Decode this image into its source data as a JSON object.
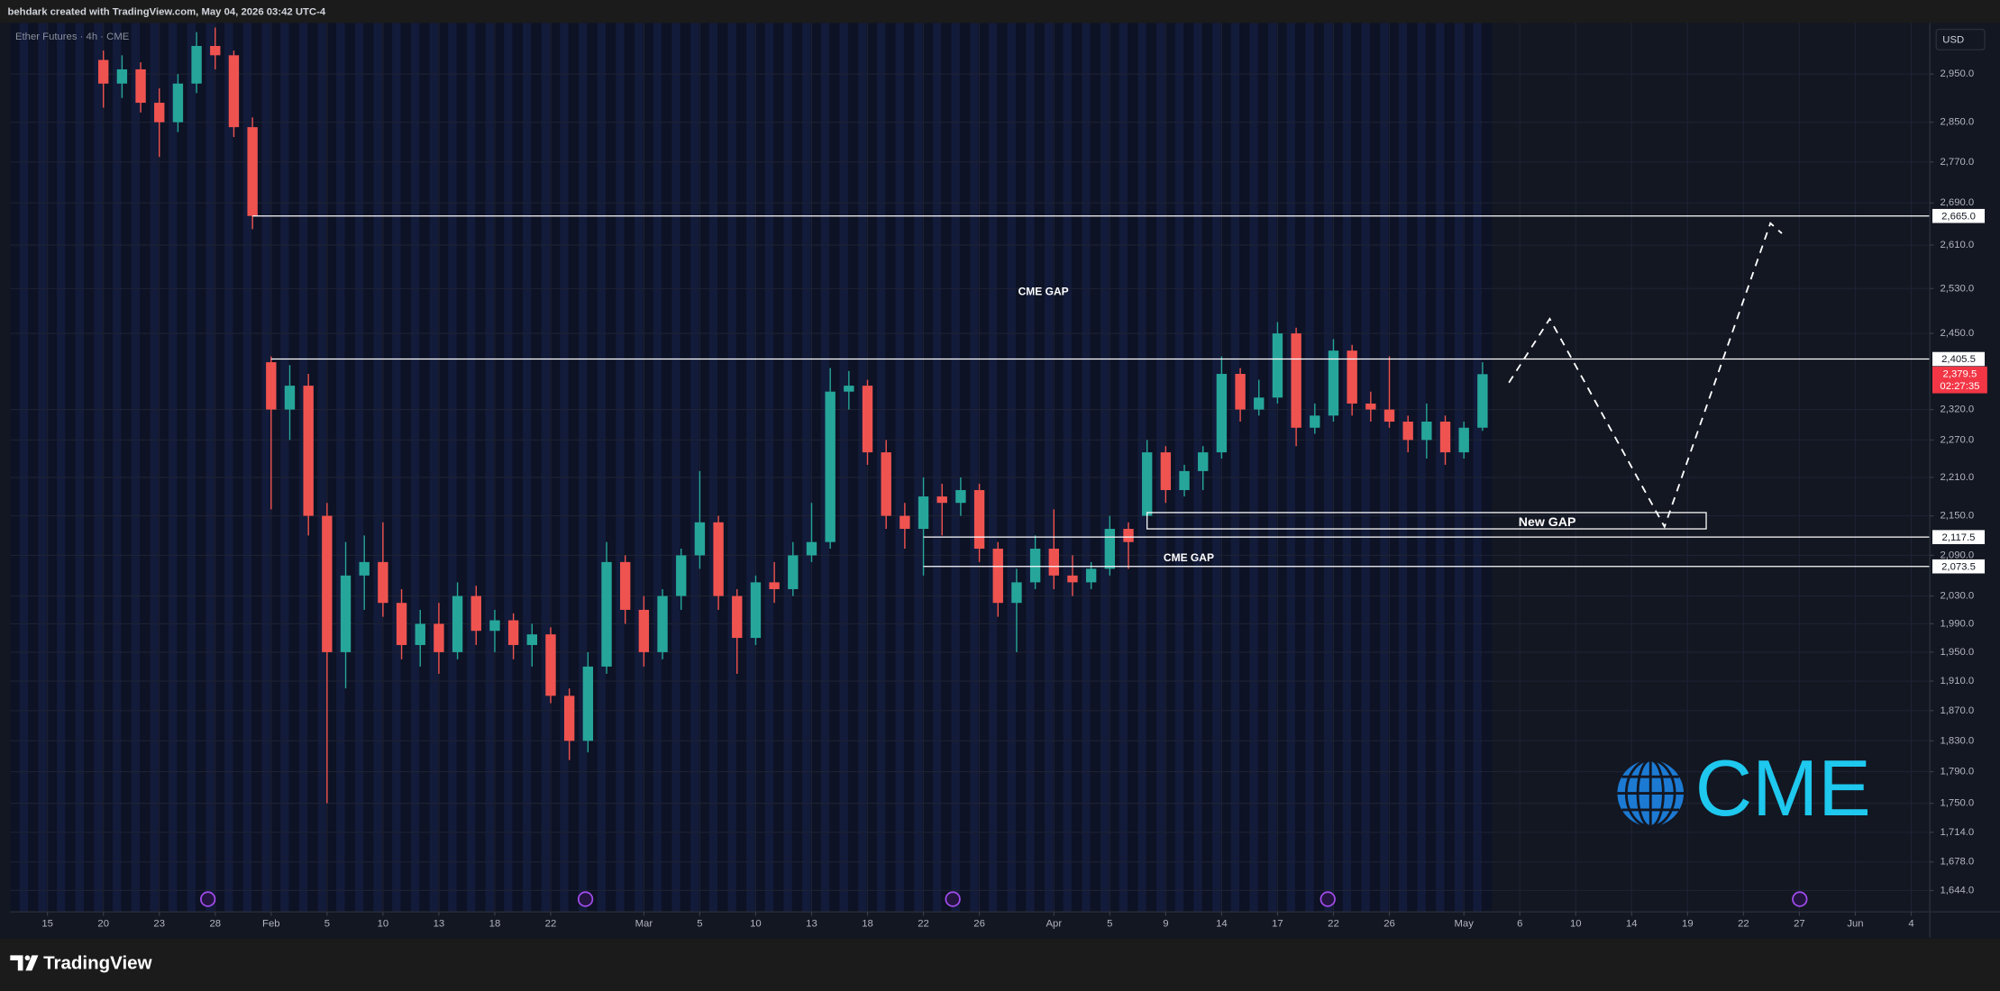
{
  "header": {
    "text": "behdark created with TradingView.com, May 04, 2026 03:42 UTC-4"
  },
  "footer": {
    "brand": "TradingView"
  },
  "chart_data": {
    "type": "candlestick",
    "title": "Ether Futures · 4h · CME",
    "currency": "USD",
    "x": [
      "2026-01-20",
      "2026-01-21",
      "2026-01-22",
      "2026-01-23",
      "2026-01-26",
      "2026-01-27",
      "2026-01-28",
      "2026-01-29",
      "2026-01-30",
      "2026-02-02",
      "2026-02-03",
      "2026-02-04",
      "2026-02-05",
      "2026-02-06",
      "2026-02-09",
      "2026-02-10",
      "2026-02-11",
      "2026-02-12",
      "2026-02-13",
      "2026-02-16",
      "2026-02-17",
      "2026-02-18",
      "2026-02-19",
      "2026-02-20",
      "2026-02-23",
      "2026-02-24",
      "2026-02-25",
      "2026-02-26",
      "2026-02-27",
      "2026-03-02",
      "2026-03-03",
      "2026-03-04",
      "2026-03-05",
      "2026-03-06",
      "2026-03-09",
      "2026-03-10",
      "2026-03-11",
      "2026-03-12",
      "2026-03-13",
      "2026-03-16",
      "2026-03-17",
      "2026-03-18",
      "2026-03-19",
      "2026-03-20",
      "2026-03-23",
      "2026-03-24",
      "2026-03-25",
      "2026-03-26",
      "2026-03-27",
      "2026-03-30",
      "2026-03-31",
      "2026-04-01",
      "2026-04-02",
      "2026-04-03",
      "2026-04-06",
      "2026-04-07",
      "2026-04-08",
      "2026-04-09",
      "2026-04-10",
      "2026-04-13",
      "2026-04-14",
      "2026-04-15",
      "2026-04-16",
      "2026-04-17",
      "2026-04-20",
      "2026-04-21",
      "2026-04-22",
      "2026-04-23",
      "2026-04-24",
      "2026-04-27",
      "2026-04-28",
      "2026-04-29",
      "2026-04-30",
      "2026-05-01",
      "2026-05-04"
    ],
    "open": [
      2980,
      2930,
      2960,
      2890,
      2850,
      2930,
      3010,
      2990,
      2840,
      2400,
      2320,
      2360,
      2150,
      1950,
      2060,
      2080,
      2020,
      1960,
      1990,
      1950,
      2030,
      1980,
      1995,
      1960,
      1975,
      1890,
      1830,
      1930,
      2080,
      2010,
      1950,
      2030,
      2090,
      2140,
      2030,
      1970,
      2050,
      2040,
      2090,
      2110,
      2350,
      2360,
      2250,
      2150,
      2130,
      2180,
      2170,
      2190,
      2100,
      2020,
      2050,
      2100,
      2060,
      2050,
      2070,
      2130,
      2150,
      2250,
      2190,
      2220,
      2250,
      2380,
      2320,
      2340,
      2450,
      2290,
      2310,
      2420,
      2330,
      2320,
      2300,
      2270,
      2300,
      2250,
      2290
    ],
    "high": [
      3000,
      2990,
      2975,
      2920,
      2950,
      3040,
      3050,
      3000,
      2860,
      2410,
      2395,
      2380,
      2170,
      2110,
      2120,
      2140,
      2040,
      2010,
      2020,
      2050,
      2045,
      2010,
      2005,
      1990,
      1985,
      1900,
      1950,
      2110,
      2090,
      2030,
      2040,
      2100,
      2220,
      2150,
      2040,
      2060,
      2080,
      2110,
      2170,
      2390,
      2385,
      2370,
      2270,
      2170,
      2210,
      2200,
      2210,
      2200,
      2110,
      2070,
      2120,
      2160,
      2090,
      2080,
      2150,
      2140,
      2270,
      2260,
      2230,
      2260,
      2410,
      2390,
      2370,
      2470,
      2460,
      2330,
      2440,
      2430,
      2350,
      2410,
      2310,
      2330,
      2310,
      2300,
      2400
    ],
    "low": [
      2880,
      2900,
      2870,
      2780,
      2830,
      2910,
      2960,
      2820,
      2640,
      2160,
      2270,
      2120,
      1750,
      1900,
      2010,
      2000,
      1940,
      1930,
      1920,
      1940,
      1960,
      1950,
      1940,
      1930,
      1880,
      1805,
      1815,
      1920,
      1990,
      1930,
      1940,
      2010,
      2070,
      2010,
      1920,
      1960,
      2020,
      2030,
      2080,
      2100,
      2320,
      2230,
      2130,
      2100,
      2060,
      2120,
      2150,
      2080,
      2000,
      1950,
      2040,
      2040,
      2030,
      2040,
      2060,
      2070,
      2150,
      2170,
      2180,
      2190,
      2240,
      2300,
      2310,
      2330,
      2260,
      2280,
      2300,
      2310,
      2300,
      2290,
      2250,
      2240,
      2230,
      2240,
      2285
    ],
    "close": [
      2930,
      2960,
      2890,
      2850,
      2930,
      3010,
      2990,
      2840,
      2665,
      2320,
      2360,
      2150,
      1950,
      2060,
      2080,
      2020,
      1960,
      1990,
      1950,
      2030,
      1980,
      1995,
      1960,
      1975,
      1890,
      1830,
      1930,
      2080,
      2010,
      1950,
      2030,
      2090,
      2140,
      2030,
      1970,
      2050,
      2040,
      2090,
      2110,
      2350,
      2360,
      2250,
      2150,
      2130,
      2180,
      2170,
      2190,
      2100,
      2020,
      2050,
      2100,
      2060,
      2050,
      2070,
      2130,
      2110,
      2250,
      2190,
      2220,
      2250,
      2380,
      2320,
      2340,
      2450,
      2290,
      2310,
      2420,
      2330,
      2320,
      2300,
      2270,
      2300,
      2250,
      2290,
      2379.5
    ],
    "up_color": "#26a69a",
    "down_color": "#ef5350",
    "log_scale": true,
    "grid": true,
    "xlim": [
      "2026-01-13",
      "2026-06-05"
    ],
    "ylim": [
      1619,
      3060
    ],
    "xticks": [
      {
        "value": "2026-01-15",
        "label": "15"
      },
      {
        "value": "2026-01-20",
        "label": "20"
      },
      {
        "value": "2026-01-23",
        "label": "23"
      },
      {
        "value": "2026-01-28",
        "label": "28"
      },
      {
        "value": "2026-02-01",
        "label": "Feb"
      },
      {
        "value": "2026-02-05",
        "label": "5"
      },
      {
        "value": "2026-02-10",
        "label": "10"
      },
      {
        "value": "2026-02-13",
        "label": "13"
      },
      {
        "value": "2026-02-18",
        "label": "18"
      },
      {
        "value": "2026-02-22",
        "label": "22"
      },
      {
        "value": "2026-03-01",
        "label": "Mar"
      },
      {
        "value": "2026-03-05",
        "label": "5"
      },
      {
        "value": "2026-03-10",
        "label": "10"
      },
      {
        "value": "2026-03-13",
        "label": "13"
      },
      {
        "value": "2026-03-18",
        "label": "18"
      },
      {
        "value": "2026-03-22",
        "label": "22"
      },
      {
        "value": "2026-03-26",
        "label": "26"
      },
      {
        "value": "2026-04-01",
        "label": "Apr"
      },
      {
        "value": "2026-04-05",
        "label": "5"
      },
      {
        "value": "2026-04-09",
        "label": "9"
      },
      {
        "value": "2026-04-14",
        "label": "14"
      },
      {
        "value": "2026-04-17",
        "label": "17"
      },
      {
        "value": "2026-04-22",
        "label": "22"
      },
      {
        "value": "2026-04-26",
        "label": "26"
      },
      {
        "value": "2026-05-01",
        "label": "May"
      },
      {
        "value": "2026-05-06",
        "label": "6"
      },
      {
        "value": "2026-05-10",
        "label": "10"
      },
      {
        "value": "2026-05-14",
        "label": "14"
      },
      {
        "value": "2026-05-19",
        "label": "19"
      },
      {
        "value": "2026-05-22",
        "label": "22"
      },
      {
        "value": "2026-05-27",
        "label": "27"
      },
      {
        "value": "2026-06-01",
        "label": "Jun"
      },
      {
        "value": "2026-06-04",
        "label": "4"
      }
    ],
    "yticks": [
      {
        "value": 2950,
        "label": "2,950.0"
      },
      {
        "value": 2850,
        "label": "2,850.0"
      },
      {
        "value": 2770,
        "label": "2,770.0"
      },
      {
        "value": 2690,
        "label": "2,690.0"
      },
      {
        "value": 2610,
        "label": "2,610.0"
      },
      {
        "value": 2530,
        "label": "2,530.0"
      },
      {
        "value": 2450,
        "label": "2,450.0"
      },
      {
        "value": 2320,
        "label": "2,320.0"
      },
      {
        "value": 2270,
        "label": "2,270.0"
      },
      {
        "value": 2210,
        "label": "2,210.0"
      },
      {
        "value": 2150,
        "label": "2,150.0"
      },
      {
        "value": 2090,
        "label": "2,090.0"
      },
      {
        "value": 2030,
        "label": "2,030.0"
      },
      {
        "value": 1990,
        "label": "1,990.0"
      },
      {
        "value": 1950,
        "label": "1,950.0"
      },
      {
        "value": 1910,
        "label": "1,910.0"
      },
      {
        "value": 1870,
        "label": "1,870.0"
      },
      {
        "value": 1830,
        "label": "1,830.0"
      },
      {
        "value": 1790,
        "label": "1,790.0"
      },
      {
        "value": 1750,
        "label": "1,750.0"
      },
      {
        "value": 1714,
        "label": "1,714.0"
      },
      {
        "value": 1678,
        "label": "1,678.0"
      },
      {
        "value": 1644,
        "label": "1,644.0"
      }
    ],
    "levels": [
      {
        "value": 2665,
        "label": "2,665.0",
        "start": "2026-01-30"
      },
      {
        "value": 2405.5,
        "label": "2,405.5",
        "start": "2026-02-02"
      },
      {
        "value": 2117.5,
        "label": "2,117.5",
        "start": "2026-03-23"
      },
      {
        "value": 2073.5,
        "label": "2,073.5",
        "start": "2026-03-23"
      }
    ],
    "last_price": {
      "value": 2379.5,
      "label": "2,379.5",
      "countdown": "02:27:35"
    },
    "annotations": [
      {
        "text": "CME GAP"
      },
      {
        "text": "CME GAP"
      }
    ],
    "gap_box": {
      "text": "New GAP",
      "top": 2155,
      "bottom": 2130,
      "start": "2026-04-08",
      "end": "2026-05-20"
    },
    "logo_text": "CME"
  }
}
